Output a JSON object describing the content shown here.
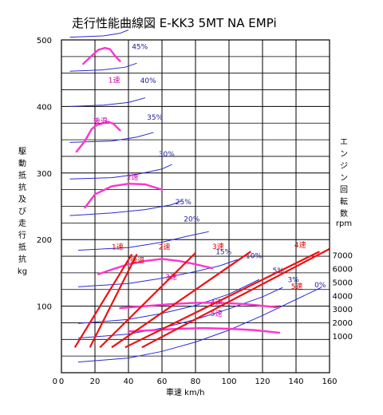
{
  "chart_data": {
    "type": "line",
    "title": "走行性能曲線図 E-KK3 5MT NA EMPi",
    "xlabel": "車速 km/h",
    "ylabel_chars": [
      "駆",
      "動",
      "抵",
      "抗",
      "及",
      "び",
      "走",
      "行",
      "抵",
      "抗",
      "kg"
    ],
    "rpm_label_chars": [
      "エ",
      "ン",
      "ジ",
      "ン",
      "回",
      "転",
      "数",
      "rpm"
    ],
    "x_ticks": [
      0,
      20,
      40,
      60,
      80,
      100,
      120,
      140,
      160
    ],
    "y_ticks": [
      100,
      200,
      300,
      400,
      500
    ],
    "xlim": [
      0,
      160
    ],
    "ylim": [
      0,
      500
    ],
    "rpm_ticks": [
      1000,
      2000,
      3000,
      4000,
      5000,
      6000,
      7000
    ],
    "colors": {
      "grade": "#2a2ad8",
      "resistance": "#ff33cc",
      "speed_line": "#ee1111",
      "grid": "#000000"
    },
    "gradient_curves": [
      {
        "label": "0%",
        "label_x": 151,
        "label_y": 128,
        "points": [
          [
            10,
            16
          ],
          [
            40,
            22
          ],
          [
            60,
            32
          ],
          [
            80,
            46
          ],
          [
            100,
            64
          ],
          [
            120,
            86
          ],
          [
            140,
            110
          ],
          [
            155,
            128
          ]
        ]
      },
      {
        "label": "3%",
        "label_x": 135,
        "label_y": 136,
        "points": [
          [
            10,
            52
          ],
          [
            40,
            58
          ],
          [
            60,
            67
          ],
          [
            80,
            80
          ],
          [
            100,
            96
          ],
          [
            120,
            114
          ],
          [
            132,
            128
          ]
        ]
      },
      {
        "label": "5%",
        "label_x": 126,
        "label_y": 150,
        "points": [
          [
            10,
            74
          ],
          [
            40,
            80
          ],
          [
            60,
            89
          ],
          [
            80,
            101
          ],
          [
            100,
            118
          ],
          [
            118,
            140
          ]
        ]
      },
      {
        "label": "10%",
        "label_x": 110,
        "label_y": 172,
        "points": [
          [
            10,
            129
          ],
          [
            40,
            134
          ],
          [
            60,
            142
          ],
          [
            80,
            152
          ],
          [
            95,
            161
          ],
          [
            105,
            170
          ]
        ]
      },
      {
        "label": "15%",
        "label_x": 92,
        "label_y": 178,
        "points": [
          [
            10,
            184
          ],
          [
            40,
            188
          ],
          [
            60,
            196
          ],
          [
            75,
            205
          ],
          [
            88,
            212
          ]
        ]
      },
      {
        "label": "20%",
        "label_x": 73,
        "label_y": 227,
        "points": [
          [
            5,
            236
          ],
          [
            30,
            240
          ],
          [
            50,
            245
          ],
          [
            65,
            252
          ],
          [
            72,
            258
          ]
        ]
      },
      {
        "label": "25%",
        "label_x": 68,
        "label_y": 253,
        "points": [
          [
            5,
            291
          ],
          [
            30,
            293
          ],
          [
            45,
            298
          ],
          [
            60,
            306
          ],
          [
            66,
            313
          ]
        ]
      },
      {
        "label": "30%",
        "label_x": 58,
        "label_y": 325,
        "points": [
          [
            5,
            346
          ],
          [
            30,
            348
          ],
          [
            45,
            354
          ],
          [
            55,
            361
          ]
        ]
      },
      {
        "label": "35%",
        "label_x": 51,
        "label_y": 380,
        "points": [
          [
            5,
            400
          ],
          [
            25,
            402
          ],
          [
            40,
            406
          ],
          [
            50,
            413
          ]
        ]
      },
      {
        "label": "40%",
        "label_x": 47,
        "label_y": 435,
        "points": [
          [
            5,
            453
          ],
          [
            25,
            455
          ],
          [
            38,
            459
          ],
          [
            45,
            465
          ]
        ]
      },
      {
        "label": "45%",
        "label_x": 42,
        "label_y": 486,
        "points": [
          [
            5,
            504
          ],
          [
            25,
            506
          ],
          [
            35,
            510
          ],
          [
            40,
            515
          ]
        ]
      }
    ],
    "resistance_curves": [
      {
        "label": "1速",
        "label_x": 28,
        "label_y": 436,
        "points": [
          [
            13,
            464
          ],
          [
            18,
            476
          ],
          [
            22,
            485
          ],
          [
            26,
            488
          ],
          [
            29,
            486
          ],
          [
            32,
            476
          ],
          [
            35,
            468
          ]
        ]
      },
      {
        "label": "後退",
        "label_x": 19,
        "label_y": 375,
        "points": [
          [
            9,
            332
          ],
          [
            14,
            348
          ],
          [
            18,
            366
          ],
          [
            21,
            372
          ],
          [
            25,
            375
          ],
          [
            28,
            377
          ],
          [
            31,
            374
          ],
          [
            35,
            364
          ]
        ]
      },
      {
        "label": "2速",
        "label_x": 39,
        "label_y": 290,
        "points": [
          [
            14,
            248
          ],
          [
            20,
            268
          ],
          [
            30,
            280
          ],
          [
            40,
            284
          ],
          [
            50,
            283
          ],
          [
            60,
            275
          ]
        ]
      },
      {
        "label": "3速",
        "label_x": 62,
        "label_y": 140,
        "points": [
          [
            22,
            148
          ],
          [
            30,
            155
          ],
          [
            40,
            163
          ],
          [
            50,
            168
          ],
          [
            60,
            171
          ],
          [
            70,
            168
          ],
          [
            80,
            163
          ],
          [
            90,
            157
          ]
        ]
      },
      {
        "label": "4速",
        "label_x": 89,
        "label_y": 102,
        "points": [
          [
            35,
            97
          ],
          [
            50,
            100
          ],
          [
            65,
            103
          ],
          [
            80,
            105
          ],
          [
            95,
            105
          ],
          [
            110,
            103
          ],
          [
            130,
            98
          ]
        ]
      },
      {
        "label": "5速",
        "label_x": 89,
        "label_y": 85,
        "points": [
          [
            40,
            62
          ],
          [
            55,
            64
          ],
          [
            70,
            66
          ],
          [
            85,
            67
          ],
          [
            100,
            66
          ],
          [
            115,
            64
          ],
          [
            130,
            60
          ]
        ]
      }
    ],
    "speed_lines": [
      {
        "label": "1速",
        "label_x": 30,
        "label_y": 185,
        "from": [
          8,
          38
        ],
        "to": [
          42,
          178
        ]
      },
      {
        "label": "後退",
        "label_x": 41,
        "label_y": 165,
        "from": [
          17,
          38
        ],
        "to": [
          45,
          178
        ]
      },
      {
        "label": "2速",
        "label_x": 58,
        "label_y": 185,
        "from": [
          23,
          38
        ],
        "to": [
          80,
          180
        ]
      },
      {
        "label": "3速",
        "label_x": 90,
        "label_y": 186,
        "from": [
          30,
          38
        ],
        "to": [
          113,
          182
        ]
      },
      {
        "label": "4速",
        "label_x": 139,
        "label_y": 188,
        "from": [
          38,
          38
        ],
        "to": [
          154,
          182
        ]
      },
      {
        "label": "5速",
        "label_x": 137,
        "label_y": 126,
        "from": [
          48,
          38
        ],
        "to": [
          160,
          186
        ]
      }
    ]
  }
}
